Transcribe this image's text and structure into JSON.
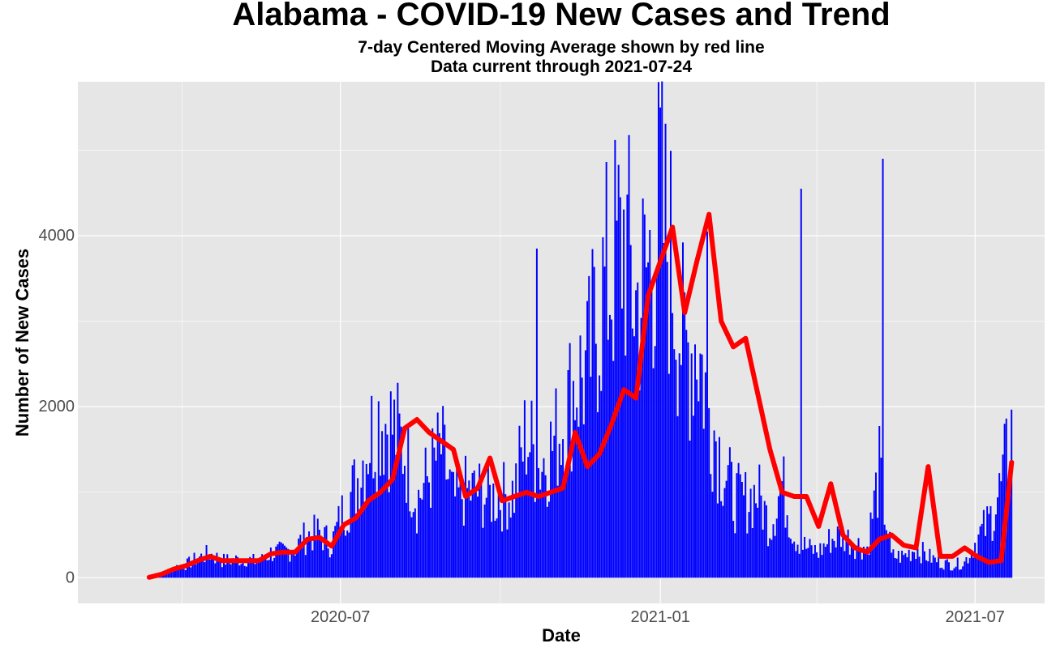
{
  "chart_data": {
    "type": "bar",
    "title": "Alabama - COVID-19 New Cases and Trend",
    "subtitle": [
      "7-day Centered Moving Average shown by red line",
      "Data current through 2021-07-24"
    ],
    "xlabel": "Date",
    "ylabel": "Number of New Cases",
    "x_range": [
      "2020-02-01",
      "2021-08-10"
    ],
    "ylim": [
      -300,
      5800
    ],
    "x_ticks": [
      "2020-07",
      "2021-01",
      "2021-07"
    ],
    "y_ticks": [
      0,
      2000,
      4000
    ],
    "grid": true,
    "colors": {
      "bars": "#0000ff",
      "trend": "#ff0000",
      "panel": "#e6e6e6",
      "grid": "#ffffff"
    },
    "series": [
      {
        "name": "New Cases",
        "kind": "bars",
        "points": [
          [
            "2020-03-13",
            5
          ],
          [
            "2020-03-20",
            30
          ],
          [
            "2020-03-27",
            120
          ],
          [
            "2020-04-03",
            150
          ],
          [
            "2020-04-10",
            230
          ],
          [
            "2020-04-17",
            280
          ],
          [
            "2020-04-24",
            200
          ],
          [
            "2020-05-01",
            210
          ],
          [
            "2020-05-08",
            220
          ],
          [
            "2020-05-15",
            180
          ],
          [
            "2020-05-22",
            290
          ],
          [
            "2020-05-29",
            300
          ],
          [
            "2020-06-05",
            350
          ],
          [
            "2020-06-12",
            500
          ],
          [
            "2020-06-19",
            520
          ],
          [
            "2020-06-26",
            400
          ],
          [
            "2020-07-03",
            800
          ],
          [
            "2020-07-10",
            1100
          ],
          [
            "2020-07-17",
            1600
          ],
          [
            "2020-07-24",
            1900
          ],
          [
            "2020-07-31",
            1750
          ],
          [
            "2020-08-07",
            1500
          ],
          [
            "2020-08-14",
            900
          ],
          [
            "2020-08-21",
            1200
          ],
          [
            "2020-08-28",
            1500
          ],
          [
            "2020-09-04",
            900
          ],
          [
            "2020-09-11",
            1000
          ],
          [
            "2020-09-18",
            1000
          ],
          [
            "2020-09-25",
            950
          ],
          [
            "2020-10-02",
            950
          ],
          [
            "2020-10-09",
            1000
          ],
          [
            "2020-10-16",
            1700
          ],
          [
            "2020-10-23",
            1300
          ],
          [
            "2020-10-30",
            1500
          ],
          [
            "2020-11-06",
            1800
          ],
          [
            "2020-11-13",
            2300
          ],
          [
            "2020-11-20",
            2400
          ],
          [
            "2020-11-27",
            3200
          ],
          [
            "2020-12-04",
            3600
          ],
          [
            "2020-12-11",
            4000
          ],
          [
            "2020-12-18",
            3200
          ],
          [
            "2020-12-25",
            3600
          ],
          [
            "2021-01-01",
            4300
          ],
          [
            "2021-01-08",
            3600
          ],
          [
            "2021-01-15",
            2600
          ],
          [
            "2021-01-22",
            2800
          ],
          [
            "2021-01-29",
            2000
          ],
          [
            "2021-02-05",
            1400
          ],
          [
            "2021-02-12",
            950
          ],
          [
            "2021-02-19",
            900
          ],
          [
            "2021-02-26",
            1000
          ],
          [
            "2021-03-05",
            600
          ],
          [
            "2021-03-12",
            1100
          ],
          [
            "2021-03-19",
            500
          ],
          [
            "2021-03-26",
            350
          ],
          [
            "2021-04-02",
            300
          ],
          [
            "2021-04-09",
            450
          ],
          [
            "2021-04-16",
            500
          ],
          [
            "2021-04-23",
            400
          ],
          [
            "2021-04-30",
            350
          ],
          [
            "2021-05-07",
            1250
          ],
          [
            "2021-05-14",
            250
          ],
          [
            "2021-05-21",
            250
          ],
          [
            "2021-05-28",
            350
          ],
          [
            "2021-06-04",
            250
          ],
          [
            "2021-06-11",
            180
          ],
          [
            "2021-06-18",
            150
          ],
          [
            "2021-06-25",
            180
          ],
          [
            "2021-07-02",
            450
          ],
          [
            "2021-07-09",
            650
          ],
          [
            "2021-07-16",
            1050
          ],
          [
            "2021-07-22",
            1700
          ]
        ],
        "spikes": [
          [
            "2020-10-22",
            3850
          ],
          [
            "2020-12-09",
            4450
          ],
          [
            "2021-01-01",
            5500
          ],
          [
            "2021-01-28",
            4050
          ],
          [
            "2021-03-23",
            4550
          ],
          [
            "2021-05-09",
            4900
          ]
        ]
      },
      {
        "name": "7-day Centered Moving Average",
        "kind": "line",
        "points": [
          [
            "2020-03-13",
            5
          ],
          [
            "2020-03-20",
            40
          ],
          [
            "2020-03-27",
            100
          ],
          [
            "2020-04-03",
            140
          ],
          [
            "2020-04-10",
            200
          ],
          [
            "2020-04-17",
            250
          ],
          [
            "2020-04-24",
            200
          ],
          [
            "2020-05-01",
            200
          ],
          [
            "2020-05-08",
            200
          ],
          [
            "2020-05-15",
            200
          ],
          [
            "2020-05-22",
            280
          ],
          [
            "2020-05-29",
            300
          ],
          [
            "2020-06-05",
            300
          ],
          [
            "2020-06-12",
            450
          ],
          [
            "2020-06-19",
            470
          ],
          [
            "2020-06-26",
            370
          ],
          [
            "2020-07-03",
            620
          ],
          [
            "2020-07-10",
            700
          ],
          [
            "2020-07-17",
            900
          ],
          [
            "2020-07-24",
            1000
          ],
          [
            "2020-07-31",
            1150
          ],
          [
            "2020-08-07",
            1750
          ],
          [
            "2020-08-14",
            1850
          ],
          [
            "2020-08-21",
            1700
          ],
          [
            "2020-08-28",
            1600
          ],
          [
            "2020-09-04",
            1500
          ],
          [
            "2020-09-11",
            950
          ],
          [
            "2020-09-18",
            1050
          ],
          [
            "2020-09-25",
            1400
          ],
          [
            "2020-10-02",
            900
          ],
          [
            "2020-10-09",
            950
          ],
          [
            "2020-10-16",
            1000
          ],
          [
            "2020-10-23",
            950
          ],
          [
            "2020-10-30",
            1000
          ],
          [
            "2020-11-06",
            1050
          ],
          [
            "2020-11-13",
            1700
          ],
          [
            "2020-11-20",
            1300
          ],
          [
            "2020-11-27",
            1450
          ],
          [
            "2020-12-04",
            1800
          ],
          [
            "2020-12-11",
            2200
          ],
          [
            "2020-12-18",
            2100
          ],
          [
            "2020-12-25",
            3300
          ],
          [
            "2021-01-01",
            3700
          ],
          [
            "2021-01-08",
            4100
          ],
          [
            "2021-01-15",
            3100
          ],
          [
            "2021-01-22",
            3700
          ],
          [
            "2021-01-29",
            4250
          ],
          [
            "2021-02-05",
            3000
          ],
          [
            "2021-02-12",
            2700
          ],
          [
            "2021-02-19",
            2800
          ],
          [
            "2021-02-26",
            2150
          ],
          [
            "2021-03-05",
            1500
          ],
          [
            "2021-03-12",
            1000
          ],
          [
            "2021-03-19",
            950
          ],
          [
            "2021-03-26",
            950
          ],
          [
            "2021-04-02",
            600
          ],
          [
            "2021-04-09",
            1100
          ],
          [
            "2021-04-16",
            500
          ],
          [
            "2021-04-23",
            350
          ],
          [
            "2021-04-30",
            300
          ],
          [
            "2021-05-07",
            450
          ],
          [
            "2021-05-14",
            500
          ],
          [
            "2021-05-21",
            380
          ],
          [
            "2021-05-28",
            350
          ],
          [
            "2021-06-04",
            1300
          ],
          [
            "2021-06-11",
            250
          ],
          [
            "2021-06-18",
            250
          ],
          [
            "2021-06-25",
            350
          ],
          [
            "2021-07-02",
            250
          ],
          [
            "2021-07-09",
            180
          ],
          [
            "2021-07-16",
            200
          ],
          [
            "2021-07-22",
            1350
          ]
        ]
      }
    ]
  }
}
